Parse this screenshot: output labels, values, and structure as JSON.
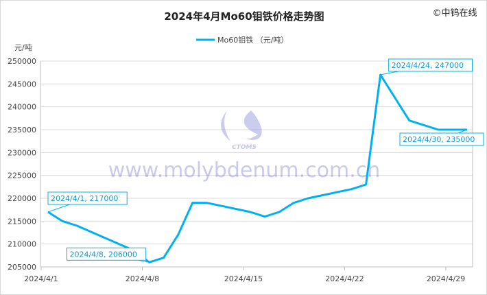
{
  "chart_data": {
    "type": "line",
    "title": "2024年4月Mo60钼铁价格走势图",
    "brand": "©中钨在线",
    "watermark": "www.molybdenum.com.cn",
    "watermark_logo": "CTOMS",
    "ylabel": "元/吨",
    "ylim": [
      205000,
      250000
    ],
    "yticks": [
      205000,
      210000,
      215000,
      220000,
      225000,
      230000,
      235000,
      240000,
      245000,
      250000
    ],
    "xlim": [
      "2024-04-01",
      "2024-04-30"
    ],
    "xticks": [
      "2024/4/1",
      "2024/4/8",
      "2024/4/15",
      "2024/4/22",
      "2024/4/29"
    ],
    "legend_position": "top",
    "grid": true,
    "series": [
      {
        "name": "Mo60钼铁 （元/吨）",
        "color": "#00b0f0",
        "points": [
          [
            "2024-04-01",
            217000
          ],
          [
            "2024-04-02",
            215000
          ],
          [
            "2024-04-03",
            214000
          ],
          [
            "2024-04-07",
            208500
          ],
          [
            "2024-04-08",
            206000
          ],
          [
            "2024-04-09",
            207000
          ],
          [
            "2024-04-10",
            212000
          ],
          [
            "2024-04-11",
            219000
          ],
          [
            "2024-04-12",
            219000
          ],
          [
            "2024-04-15",
            217000
          ],
          [
            "2024-04-16",
            216000
          ],
          [
            "2024-04-17",
            217000
          ],
          [
            "2024-04-18",
            219000
          ],
          [
            "2024-04-19",
            220000
          ],
          [
            "2024-04-22",
            222000
          ],
          [
            "2024-04-23",
            223000
          ],
          [
            "2024-04-24",
            247000
          ],
          [
            "2024-04-26",
            237000
          ],
          [
            "2024-04-28",
            235000
          ],
          [
            "2024-04-30",
            235000
          ]
        ]
      }
    ],
    "annotations": [
      {
        "text": "2024/4/1, 217000",
        "date": "2024-04-01",
        "value": 217000
      },
      {
        "text": "2024/4/8, 206000",
        "date": "2024-04-08",
        "value": 206000
      },
      {
        "text": "2024/4/24, 247000",
        "date": "2024-04-24",
        "value": 247000
      },
      {
        "text": "2024/4/30, 235000",
        "date": "2024-04-30",
        "value": 235000
      }
    ]
  }
}
